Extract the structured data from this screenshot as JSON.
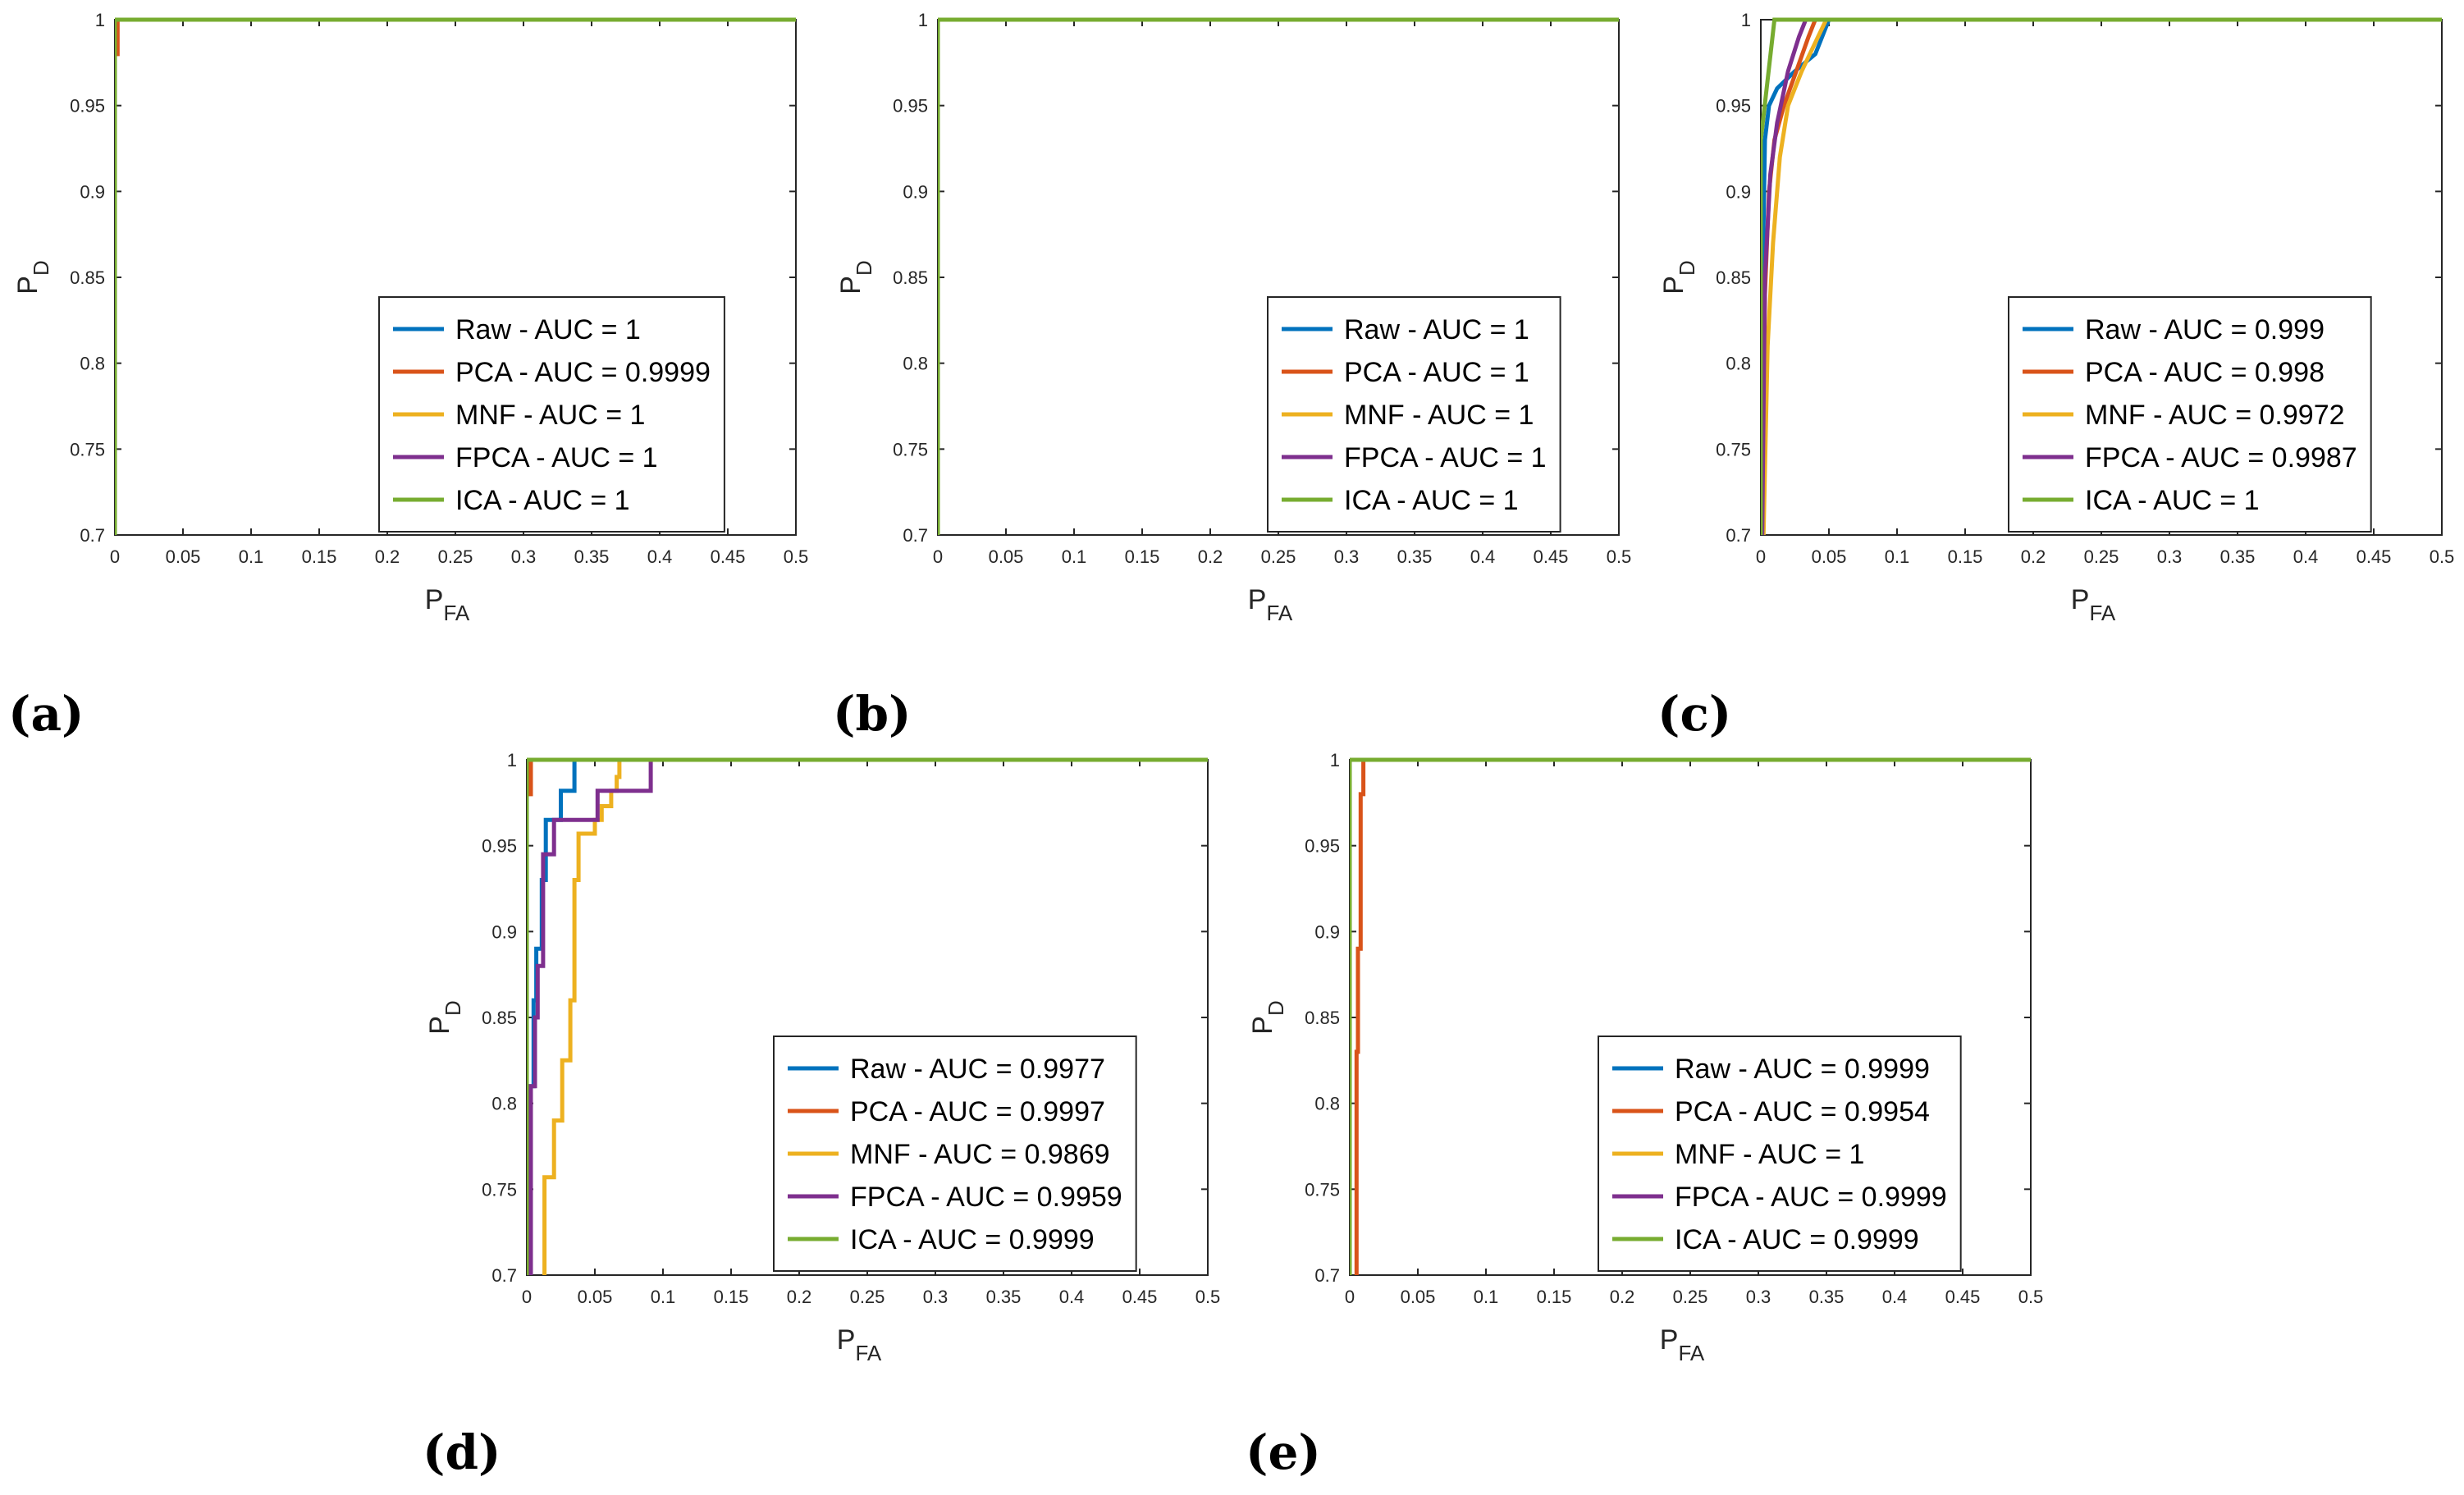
{
  "colors": {
    "Raw": "#0072BD",
    "PCA": "#D95319",
    "MNF": "#EDB120",
    "FPCA": "#7E2F8E",
    "ICA": "#77AC30",
    "axis": "#262626"
  },
  "chart_data": [
    {
      "type": "line",
      "panel_label": "(a)",
      "title": "",
      "xlabel_main": "P",
      "xlabel_sub": "FA",
      "ylabel_main": "P",
      "ylabel_sub": "D",
      "xlim": [
        0,
        0.5
      ],
      "ylim": [
        0.7,
        1
      ],
      "xticks": [
        "0",
        "0.05",
        "0.1",
        "0.15",
        "0.2",
        "0.25",
        "0.3",
        "0.35",
        "0.4",
        "0.45",
        "0.5"
      ],
      "yticks": [
        "0.7",
        "0.75",
        "0.8",
        "0.85",
        "0.9",
        "0.95",
        "1"
      ],
      "legend_position": "bottom-right",
      "series": [
        {
          "name": "Raw",
          "label": "Raw - AUC = 1",
          "points": [
            [
              0,
              0.7
            ],
            [
              0,
              1
            ],
            [
              0.5,
              1
            ]
          ]
        },
        {
          "name": "PCA",
          "label": "PCA - AUC = 0.9999",
          "points": [
            [
              0,
              0.7
            ],
            [
              0,
              0.98
            ],
            [
              0.002,
              0.98
            ],
            [
              0.002,
              1
            ],
            [
              0.5,
              1
            ]
          ]
        },
        {
          "name": "MNF",
          "label": "MNF - AUC = 1",
          "points": [
            [
              0,
              0.7
            ],
            [
              0,
              1
            ],
            [
              0.5,
              1
            ]
          ]
        },
        {
          "name": "FPCA",
          "label": "FPCA - AUC = 1",
          "points": [
            [
              0,
              0.7
            ],
            [
              0,
              1
            ],
            [
              0.5,
              1
            ]
          ]
        },
        {
          "name": "ICA",
          "label": "ICA - AUC = 1",
          "points": [
            [
              0,
              0.7
            ],
            [
              0,
              1
            ],
            [
              0.5,
              1
            ]
          ]
        }
      ]
    },
    {
      "type": "line",
      "panel_label": "(b)",
      "title": "",
      "xlabel_main": "P",
      "xlabel_sub": "FA",
      "ylabel_main": "P",
      "ylabel_sub": "D",
      "xlim": [
        0,
        0.5
      ],
      "ylim": [
        0.7,
        1
      ],
      "xticks": [
        "0",
        "0.05",
        "0.1",
        "0.15",
        "0.2",
        "0.25",
        "0.3",
        "0.35",
        "0.4",
        "0.45",
        "0.5"
      ],
      "yticks": [
        "0.7",
        "0.75",
        "0.8",
        "0.85",
        "0.9",
        "0.95",
        "1"
      ],
      "legend_position": "bottom-right",
      "series": [
        {
          "name": "Raw",
          "label": "Raw - AUC = 1",
          "points": [
            [
              0,
              0.7
            ],
            [
              0,
              1
            ],
            [
              0.5,
              1
            ]
          ]
        },
        {
          "name": "PCA",
          "label": "PCA - AUC = 1",
          "points": [
            [
              0,
              0.7
            ],
            [
              0,
              1
            ],
            [
              0.5,
              1
            ]
          ]
        },
        {
          "name": "MNF",
          "label": "MNF - AUC = 1",
          "points": [
            [
              0,
              0.7
            ],
            [
              0,
              1
            ],
            [
              0.5,
              1
            ]
          ]
        },
        {
          "name": "FPCA",
          "label": "FPCA - AUC = 1",
          "points": [
            [
              0,
              0.7
            ],
            [
              0,
              1
            ],
            [
              0.5,
              1
            ]
          ]
        },
        {
          "name": "ICA",
          "label": "ICA - AUC = 1",
          "points": [
            [
              0,
              0.7
            ],
            [
              0,
              1
            ],
            [
              0.5,
              1
            ]
          ]
        }
      ]
    },
    {
      "type": "line",
      "panel_label": "(c)",
      "title": "",
      "xlabel_main": "P",
      "xlabel_sub": "FA",
      "ylabel_main": "P",
      "ylabel_sub": "D",
      "xlim": [
        0,
        0.5
      ],
      "ylim": [
        0.7,
        1
      ],
      "xticks": [
        "0",
        "0.05",
        "0.1",
        "0.15",
        "0.2",
        "0.25",
        "0.3",
        "0.35",
        "0.4",
        "0.45",
        "0.5"
      ],
      "yticks": [
        "0.7",
        "0.75",
        "0.8",
        "0.85",
        "0.9",
        "0.95",
        "1"
      ],
      "legend_position": "bottom-right",
      "series": [
        {
          "name": "Raw",
          "label": "Raw - AUC = 0.999",
          "points": [
            [
              0.001,
              0.7
            ],
            [
              0.002,
              0.88
            ],
            [
              0.003,
              0.93
            ],
            [
              0.006,
              0.95
            ],
            [
              0.012,
              0.96
            ],
            [
              0.025,
              0.97
            ],
            [
              0.04,
              0.98
            ],
            [
              0.05,
              1
            ],
            [
              0.5,
              1
            ]
          ]
        },
        {
          "name": "PCA",
          "label": "PCA - AUC = 0.998",
          "points": [
            [
              0.001,
              0.7
            ],
            [
              0.003,
              0.84
            ],
            [
              0.006,
              0.9
            ],
            [
              0.01,
              0.93
            ],
            [
              0.017,
              0.95
            ],
            [
              0.026,
              0.97
            ],
            [
              0.035,
              0.99
            ],
            [
              0.04,
              1
            ],
            [
              0.5,
              1
            ]
          ]
        },
        {
          "name": "MNF",
          "label": "MNF - AUC = 0.9972",
          "points": [
            [
              0.002,
              0.7
            ],
            [
              0.005,
              0.81
            ],
            [
              0.009,
              0.87
            ],
            [
              0.014,
              0.92
            ],
            [
              0.02,
              0.95
            ],
            [
              0.03,
              0.97
            ],
            [
              0.042,
              0.99
            ],
            [
              0.048,
              1
            ],
            [
              0.5,
              1
            ]
          ]
        },
        {
          "name": "FPCA",
          "label": "FPCA - AUC = 0.9987",
          "points": [
            [
              0.001,
              0.7
            ],
            [
              0.003,
              0.85
            ],
            [
              0.007,
              0.91
            ],
            [
              0.012,
              0.94
            ],
            [
              0.02,
              0.97
            ],
            [
              0.028,
              0.99
            ],
            [
              0.033,
              1
            ],
            [
              0.5,
              1
            ]
          ]
        },
        {
          "name": "ICA",
          "label": "ICA - AUC = 1",
          "points": [
            [
              0,
              0.7
            ],
            [
              0,
              0.93
            ],
            [
              0.01,
              1
            ],
            [
              0.5,
              1
            ]
          ]
        }
      ]
    },
    {
      "type": "line",
      "panel_label": "(d)",
      "title": "",
      "xlabel_main": "P",
      "xlabel_sub": "FA",
      "ylabel_main": "P",
      "ylabel_sub": "D",
      "xlim": [
        0,
        0.5
      ],
      "ylim": [
        0.7,
        1
      ],
      "xticks": [
        "0",
        "0.05",
        "0.1",
        "0.15",
        "0.2",
        "0.25",
        "0.3",
        "0.35",
        "0.4",
        "0.45",
        "0.5"
      ],
      "yticks": [
        "0.7",
        "0.75",
        "0.8",
        "0.85",
        "0.9",
        "0.95",
        "1"
      ],
      "legend_position": "bottom-right",
      "series": [
        {
          "name": "Raw",
          "label": "Raw - AUC = 0.9977",
          "points": [
            [
              0.003,
              0.7
            ],
            [
              0.003,
              0.81
            ],
            [
              0.005,
              0.81
            ],
            [
              0.005,
              0.86
            ],
            [
              0.007,
              0.86
            ],
            [
              0.007,
              0.89
            ],
            [
              0.011,
              0.89
            ],
            [
              0.011,
              0.93
            ],
            [
              0.014,
              0.93
            ],
            [
              0.014,
              0.965
            ],
            [
              0.025,
              0.965
            ],
            [
              0.025,
              0.982
            ],
            [
              0.035,
              0.982
            ],
            [
              0.035,
              1
            ],
            [
              0.5,
              1
            ]
          ]
        },
        {
          "name": "PCA",
          "label": "PCA - AUC = 0.9997",
          "points": [
            [
              0,
              0.7
            ],
            [
              0,
              0.98
            ],
            [
              0.003,
              0.98
            ],
            [
              0.003,
              1
            ],
            [
              0.5,
              1
            ]
          ]
        },
        {
          "name": "MNF",
          "label": "MNF - AUC = 0.9869",
          "points": [
            [
              0.013,
              0.7
            ],
            [
              0.013,
              0.757
            ],
            [
              0.02,
              0.757
            ],
            [
              0.02,
              0.79
            ],
            [
              0.026,
              0.79
            ],
            [
              0.026,
              0.825
            ],
            [
              0.032,
              0.825
            ],
            [
              0.032,
              0.86
            ],
            [
              0.035,
              0.86
            ],
            [
              0.035,
              0.93
            ],
            [
              0.038,
              0.93
            ],
            [
              0.038,
              0.957
            ],
            [
              0.05,
              0.957
            ],
            [
              0.05,
              0.965
            ],
            [
              0.055,
              0.965
            ],
            [
              0.055,
              0.973
            ],
            [
              0.062,
              0.973
            ],
            [
              0.062,
              0.982
            ],
            [
              0.066,
              0.982
            ],
            [
              0.066,
              0.99
            ],
            [
              0.068,
              0.99
            ],
            [
              0.068,
              1
            ],
            [
              0.5,
              1
            ]
          ]
        },
        {
          "name": "FPCA",
          "label": "FPCA - AUC = 0.9959",
          "points": [
            [
              0.003,
              0.7
            ],
            [
              0.003,
              0.81
            ],
            [
              0.006,
              0.81
            ],
            [
              0.006,
              0.85
            ],
            [
              0.008,
              0.85
            ],
            [
              0.008,
              0.88
            ],
            [
              0.012,
              0.88
            ],
            [
              0.012,
              0.945
            ],
            [
              0.02,
              0.945
            ],
            [
              0.02,
              0.965
            ],
            [
              0.052,
              0.965
            ],
            [
              0.052,
              0.982
            ],
            [
              0.091,
              0.982
            ],
            [
              0.091,
              1
            ],
            [
              0.5,
              1
            ]
          ]
        },
        {
          "name": "ICA",
          "label": "ICA - AUC = 0.9999",
          "points": [
            [
              0,
              0.7
            ],
            [
              0,
              1
            ],
            [
              0.5,
              1
            ]
          ]
        }
      ]
    },
    {
      "type": "line",
      "panel_label": "(e)",
      "title": "",
      "xlabel_main": "P",
      "xlabel_sub": "FA",
      "ylabel_main": "P",
      "ylabel_sub": "D",
      "xlim": [
        0,
        0.5
      ],
      "ylim": [
        0.7,
        1
      ],
      "xticks": [
        "0",
        "0.05",
        "0.1",
        "0.15",
        "0.2",
        "0.25",
        "0.3",
        "0.35",
        "0.4",
        "0.45",
        "0.5"
      ],
      "yticks": [
        "0.7",
        "0.75",
        "0.8",
        "0.85",
        "0.9",
        "0.95",
        "1"
      ],
      "legend_position": "bottom-right",
      "series": [
        {
          "name": "Raw",
          "label": "Raw - AUC = 0.9999",
          "points": [
            [
              0,
              0.7
            ],
            [
              0,
              1
            ],
            [
              0.5,
              1
            ]
          ]
        },
        {
          "name": "PCA",
          "label": "PCA - AUC = 0.9954",
          "points": [
            [
              0.005,
              0.7
            ],
            [
              0.005,
              0.83
            ],
            [
              0.006,
              0.83
            ],
            [
              0.006,
              0.89
            ],
            [
              0.008,
              0.89
            ],
            [
              0.008,
              0.98
            ],
            [
              0.01,
              0.98
            ],
            [
              0.01,
              1
            ],
            [
              0.5,
              1
            ]
          ]
        },
        {
          "name": "MNF",
          "label": "MNF - AUC = 1",
          "points": [
            [
              0,
              0.7
            ],
            [
              0,
              1
            ],
            [
              0.5,
              1
            ]
          ]
        },
        {
          "name": "FPCA",
          "label": "FPCA - AUC = 0.9999",
          "points": [
            [
              0,
              0.7
            ],
            [
              0,
              1
            ],
            [
              0.5,
              1
            ]
          ]
        },
        {
          "name": "ICA",
          "label": "ICA - AUC = 0.9999",
          "points": [
            [
              0,
              0.7
            ],
            [
              0,
              1
            ],
            [
              0.5,
              1
            ]
          ]
        }
      ]
    }
  ]
}
